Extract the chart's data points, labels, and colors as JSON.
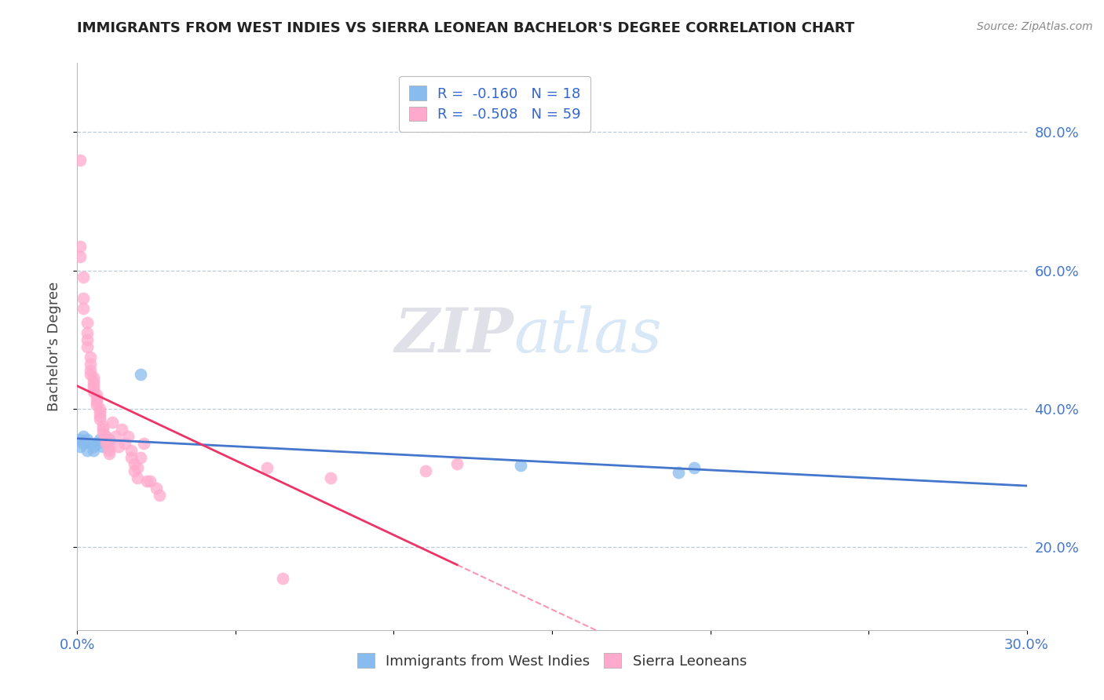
{
  "title": "IMMIGRANTS FROM WEST INDIES VS SIERRA LEONEAN BACHELOR'S DEGREE CORRELATION CHART",
  "source_text": "Source: ZipAtlas.com",
  "ylabel": "Bachelor's Degree",
  "legend_label_blue": "Immigrants from West Indies",
  "legend_label_pink": "Sierra Leoneans",
  "R_blue": -0.16,
  "N_blue": 18,
  "R_pink": -0.508,
  "N_pink": 59,
  "xlim": [
    0.0,
    0.3
  ],
  "ylim": [
    0.08,
    0.9
  ],
  "y_ticks": [
    0.2,
    0.4,
    0.6,
    0.8
  ],
  "y_tick_labels": [
    "20.0%",
    "40.0%",
    "60.0%",
    "80.0%"
  ],
  "color_blue": "#88BBEE",
  "color_pink": "#FFAACC",
  "line_color_blue": "#4477CC",
  "line_color_pink": "#EE3366",
  "watermark_zip": "ZIP",
  "watermark_atlas": "atlas",
  "blue_x": [
    0.001,
    0.001,
    0.002,
    0.002,
    0.003,
    0.003,
    0.004,
    0.005,
    0.005,
    0.006,
    0.007,
    0.008,
    0.009,
    0.01,
    0.02,
    0.14,
    0.19,
    0.195
  ],
  "blue_y": [
    0.355,
    0.345,
    0.35,
    0.36,
    0.34,
    0.355,
    0.35,
    0.345,
    0.34,
    0.35,
    0.355,
    0.345,
    0.35,
    0.355,
    0.45,
    0.318,
    0.308,
    0.315
  ],
  "pink_x": [
    0.001,
    0.001,
    0.001,
    0.002,
    0.002,
    0.002,
    0.003,
    0.003,
    0.003,
    0.003,
    0.004,
    0.004,
    0.004,
    0.004,
    0.005,
    0.005,
    0.005,
    0.005,
    0.005,
    0.006,
    0.006,
    0.006,
    0.006,
    0.007,
    0.007,
    0.007,
    0.007,
    0.008,
    0.008,
    0.008,
    0.009,
    0.009,
    0.009,
    0.01,
    0.01,
    0.01,
    0.011,
    0.012,
    0.013,
    0.014,
    0.015,
    0.016,
    0.017,
    0.017,
    0.018,
    0.018,
    0.019,
    0.019,
    0.02,
    0.021,
    0.022,
    0.023,
    0.025,
    0.026,
    0.06,
    0.065,
    0.08,
    0.11,
    0.12
  ],
  "pink_y": [
    0.76,
    0.635,
    0.62,
    0.59,
    0.56,
    0.545,
    0.525,
    0.51,
    0.5,
    0.49,
    0.475,
    0.465,
    0.455,
    0.45,
    0.445,
    0.44,
    0.435,
    0.43,
    0.425,
    0.42,
    0.415,
    0.41,
    0.405,
    0.4,
    0.395,
    0.39,
    0.385,
    0.375,
    0.37,
    0.365,
    0.36,
    0.355,
    0.35,
    0.345,
    0.34,
    0.335,
    0.38,
    0.36,
    0.345,
    0.37,
    0.35,
    0.36,
    0.33,
    0.34,
    0.32,
    0.31,
    0.3,
    0.315,
    0.33,
    0.35,
    0.295,
    0.295,
    0.285,
    0.275,
    0.315,
    0.155,
    0.3,
    0.31,
    0.32
  ]
}
